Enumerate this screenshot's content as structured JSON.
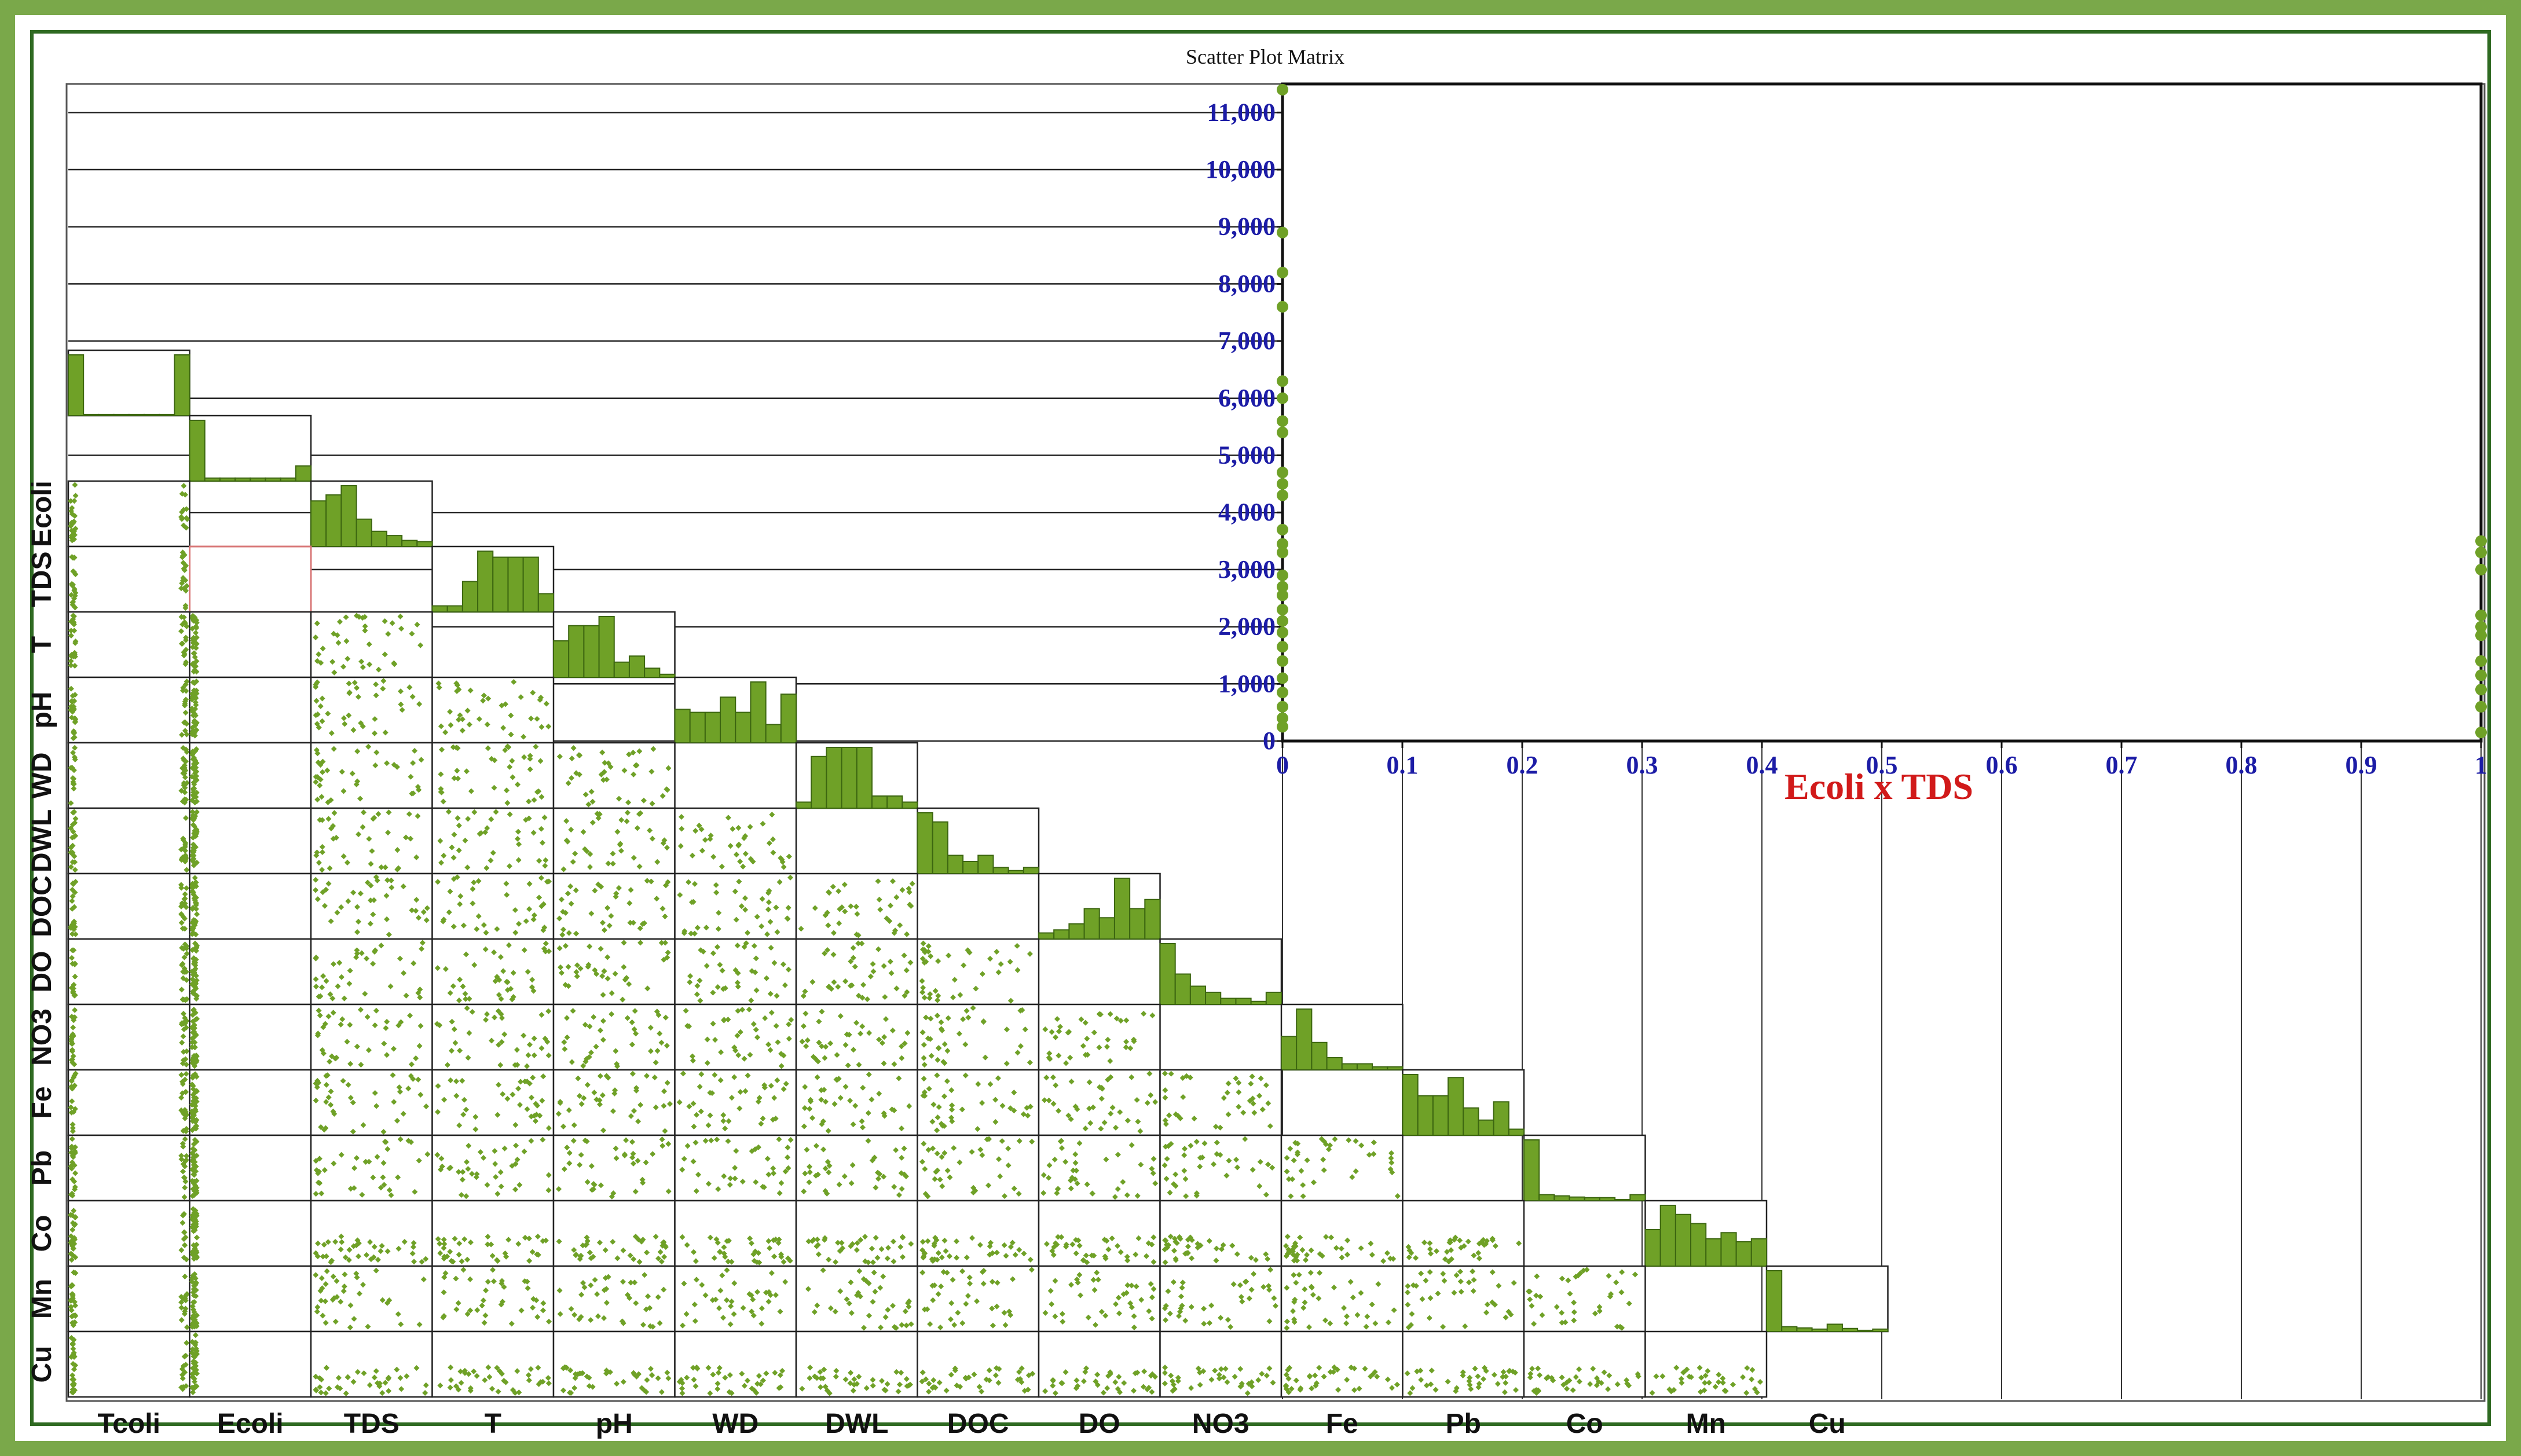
{
  "colors": {
    "frame_outer": "#7aa84a",
    "frame_inner": "#2f6a22",
    "marker": "#6fa127",
    "axis_tick_text": "#1c1ca6",
    "overlay_title": "#d11a1a",
    "highlight_cell": "#d87878"
  },
  "chart_data": [
    {
      "type": "scatter",
      "title": "Scatter Plot Matrix",
      "matrix_kind": "lower-triangular scatter matrix with histograms on the diagonal",
      "variables": [
        "Tcoli",
        "Ecoli",
        "TDS",
        "T",
        "pH",
        "WD",
        "DWL",
        "DOC",
        "DO",
        "NO3",
        "Fe",
        "Pb",
        "Co",
        "Mn",
        "Cu"
      ],
      "y_axis_variables": [
        "Ecoli",
        "TDS",
        "T",
        "pH",
        "WD",
        "DWL",
        "DOC",
        "DO",
        "NO3",
        "Fe",
        "Pb",
        "Co",
        "Mn",
        "Cu"
      ],
      "diagonal": "histogram",
      "highlighted_cell": [
        "Ecoli",
        "TDS"
      ],
      "diagonal_histograms": {
        "Tcoli": [
          1.0,
          0.02,
          0.02,
          0.02,
          0.02,
          0.02,
          0.02,
          1.0
        ],
        "Ecoli": [
          1.0,
          0.05,
          0.05,
          0.05,
          0.05,
          0.05,
          0.05,
          0.25
        ],
        "TDS": [
          0.75,
          0.85,
          1.0,
          0.45,
          0.25,
          0.18,
          0.1,
          0.08
        ],
        "T": [
          0.1,
          0.1,
          0.5,
          1.0,
          0.9,
          0.9,
          0.9,
          0.3
        ],
        "pH": [
          0.6,
          0.85,
          0.85,
          1.0,
          0.25,
          0.35,
          0.15,
          0.05
        ],
        "WD": [
          0.55,
          0.5,
          0.5,
          0.75,
          0.5,
          1.0,
          0.3,
          0.8
        ],
        "DWL": [
          0.1,
          0.85,
          1.0,
          1.0,
          1.0,
          0.2,
          0.2,
          0.1
        ],
        "DOC": [
          1.0,
          0.85,
          0.3,
          0.2,
          0.3,
          0.1,
          0.05,
          0.1
        ],
        "DO": [
          0.1,
          0.15,
          0.25,
          0.5,
          0.35,
          1.0,
          0.5,
          0.65
        ],
        "NO3": [
          1.0,
          0.5,
          0.3,
          0.2,
          0.1,
          0.1,
          0.05,
          0.2
        ],
        "Fe": [
          0.55,
          1.0,
          0.45,
          0.2,
          0.1,
          0.1,
          0.05,
          0.05
        ],
        "Pb": [
          1.0,
          0.65,
          0.65,
          0.95,
          0.45,
          0.25,
          0.55,
          0.1
        ],
        "Co": [
          1.0,
          0.1,
          0.08,
          0.06,
          0.05,
          0.05,
          0.02,
          0.1
        ],
        "Mn": [
          0.6,
          1.0,
          0.85,
          0.7,
          0.45,
          0.55,
          0.4,
          0.45
        ],
        "Cu": [
          1.0,
          0.08,
          0.06,
          0.04,
          0.12,
          0.05,
          0.02,
          0.04
        ]
      }
    },
    {
      "type": "scatter",
      "title": "Ecoli x TDS",
      "xlabel": "",
      "ylabel": "",
      "xlim": [
        0,
        1
      ],
      "ylim": [
        0,
        11500
      ],
      "x_ticks": [
        "0",
        "0.1",
        "0.2",
        "0.3",
        "0.4",
        "0.5",
        "0.6",
        "0.7",
        "0.8",
        "0.9",
        "1"
      ],
      "y_ticks": [
        "0",
        "1,000",
        "2,000",
        "3,000",
        "4,000",
        "5,000",
        "6,000",
        "7,000",
        "8,000",
        "9,000",
        "10,000",
        "11,000"
      ],
      "grid": true,
      "points": [
        {
          "x": 0,
          "y": 11400
        },
        {
          "x": 0,
          "y": 8900
        },
        {
          "x": 0,
          "y": 8200
        },
        {
          "x": 0,
          "y": 7600
        },
        {
          "x": 0,
          "y": 6300
        },
        {
          "x": 0,
          "y": 6000
        },
        {
          "x": 0,
          "y": 5600
        },
        {
          "x": 0,
          "y": 5400
        },
        {
          "x": 0,
          "y": 4700
        },
        {
          "x": 0,
          "y": 4500
        },
        {
          "x": 0,
          "y": 4300
        },
        {
          "x": 0,
          "y": 3700
        },
        {
          "x": 0,
          "y": 3450
        },
        {
          "x": 0,
          "y": 3300
        },
        {
          "x": 0,
          "y": 2900
        },
        {
          "x": 0,
          "y": 2700
        },
        {
          "x": 0,
          "y": 2550
        },
        {
          "x": 0,
          "y": 2300
        },
        {
          "x": 0,
          "y": 2100
        },
        {
          "x": 0,
          "y": 1900
        },
        {
          "x": 0,
          "y": 1650
        },
        {
          "x": 0,
          "y": 1400
        },
        {
          "x": 0,
          "y": 1100
        },
        {
          "x": 0,
          "y": 850
        },
        {
          "x": 0,
          "y": 600
        },
        {
          "x": 0,
          "y": 400
        },
        {
          "x": 0,
          "y": 250
        },
        {
          "x": 1,
          "y": 3500
        },
        {
          "x": 1,
          "y": 3300
        },
        {
          "x": 1,
          "y": 3000
        },
        {
          "x": 1,
          "y": 2200
        },
        {
          "x": 1,
          "y": 2000
        },
        {
          "x": 1,
          "y": 1850
        },
        {
          "x": 1,
          "y": 1400
        },
        {
          "x": 1,
          "y": 1150
        },
        {
          "x": 1,
          "y": 900
        },
        {
          "x": 1,
          "y": 600
        },
        {
          "x": 1,
          "y": 150
        }
      ]
    }
  ]
}
